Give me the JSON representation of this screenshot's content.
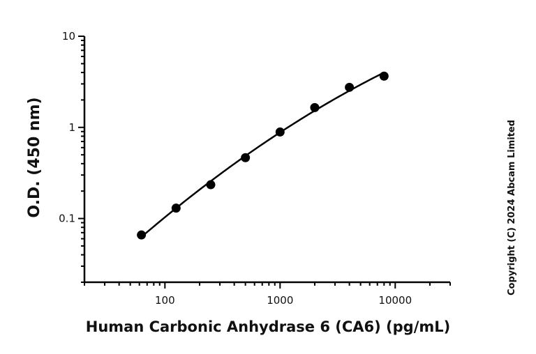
{
  "chart_data": {
    "type": "scatter",
    "xlabel": "Human Carbonic Anhydrase 6 (CA6) (pg/mL)",
    "ylabel": "O.D. (450 nm)",
    "x_scale": "log",
    "y_scale": "log",
    "xlim": [
      20,
      30000
    ],
    "ylim": [
      0.02,
      10
    ],
    "x_ticks": [
      {
        "value": 100,
        "label": "100"
      },
      {
        "value": 1000,
        "label": "1000"
      },
      {
        "value": 10000,
        "label": "10000"
      }
    ],
    "y_ticks": [
      {
        "value": 0.1,
        "label": "0.1"
      },
      {
        "value": 1,
        "label": "1"
      },
      {
        "value": 10,
        "label": "10"
      }
    ],
    "series": [
      {
        "x": [
          62.5,
          125,
          250,
          500,
          1000,
          2000,
          4000,
          8000
        ],
        "y": [
          0.066,
          0.13,
          0.235,
          0.465,
          0.89,
          1.65,
          2.75,
          3.65
        ],
        "color": "#000000",
        "fit_line": true
      }
    ],
    "grid": false,
    "legend": "none",
    "annotation": "Copyright (C) 2024 Abcam Limited"
  }
}
